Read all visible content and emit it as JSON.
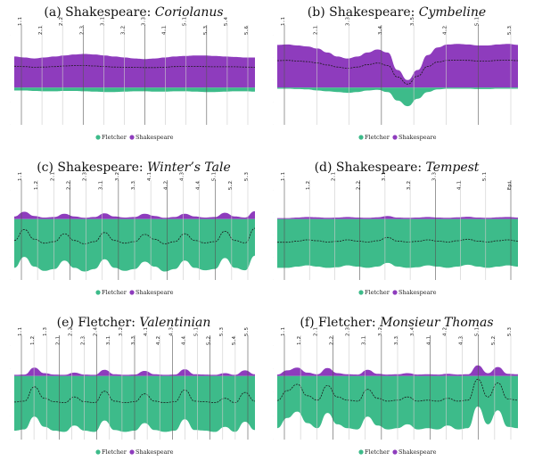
{
  "colors": {
    "fletcher": "#3dbb8a",
    "shakespeare": "#8e3cbd",
    "divider": "#555555",
    "gridline": "#cccccc"
  },
  "legend": {
    "fletcher": "Fletcher",
    "shakespeare": "Shakespeare"
  },
  "chart_data": [
    {
      "type": "area",
      "prefix": "(a) Shakespeare: ",
      "play": "Coriolanus",
      "title": "(a) Shakespeare: Coriolanus",
      "scene_labels": [
        "1.1",
        "2.1",
        "2.2",
        "2.3",
        "3.1",
        "3.2",
        "3.3",
        "4.1",
        "5.1",
        "5.3",
        "5.4",
        "5.6"
      ],
      "shakespeare_profile": [
        0.62,
        0.6,
        0.58,
        0.6,
        0.62,
        0.64,
        0.66,
        0.67,
        0.66,
        0.64,
        0.62,
        0.6,
        0.58,
        0.57,
        0.58,
        0.6,
        0.62,
        0.63,
        0.64,
        0.64,
        0.63,
        0.62,
        0.61,
        0.6,
        0.6
      ],
      "fletcher_profile": [
        0.08,
        0.08,
        0.09,
        0.1,
        0.1,
        0.09,
        0.09,
        0.1,
        0.11,
        0.12,
        0.12,
        0.11,
        0.1,
        0.1,
        0.11,
        0.11,
        0.1,
        0.1,
        0.11,
        0.12,
        0.12,
        0.11,
        0.1,
        0.1,
        0.11
      ],
      "dominant": "shakespeare"
    },
    {
      "type": "area",
      "prefix": "(b) Shakespeare: ",
      "play": "Cymbeline",
      "title": "(b) Shakespeare: Cymbeline",
      "scene_labels": [
        "1.1",
        "2.1",
        "3.3",
        "3.4",
        "3.5",
        "4.2",
        "5.1",
        "5.3"
      ],
      "shakespeare_profile": [
        0.85,
        0.86,
        0.84,
        0.82,
        0.78,
        0.7,
        0.62,
        0.58,
        0.62,
        0.7,
        0.76,
        0.7,
        0.35,
        0.15,
        0.35,
        0.65,
        0.8,
        0.86,
        0.87,
        0.86,
        0.84,
        0.84,
        0.86,
        0.87,
        0.85
      ],
      "fletcher_profile": [
        0.03,
        0.03,
        0.04,
        0.05,
        0.08,
        0.1,
        0.12,
        0.14,
        0.12,
        0.08,
        0.06,
        0.12,
        0.35,
        0.5,
        0.3,
        0.12,
        0.05,
        0.03,
        0.03,
        0.03,
        0.04,
        0.04,
        0.03,
        0.03,
        0.03
      ],
      "dominant": "shakespeare"
    },
    {
      "type": "area",
      "prefix": "(c) Shakespeare: ",
      "play": "Winter’s Tale",
      "title": "(c) Shakespeare: Winter’s Tale",
      "scene_labels": [
        "1.1",
        "1.2",
        "2.1",
        "2.2",
        "2.3",
        "3.1",
        "3.2",
        "3.3",
        "4.1",
        "4.2",
        "4.3",
        "4.4",
        "5.1",
        "5.2",
        "5.3"
      ],
      "shakespeare_profile": [
        0.1,
        0.28,
        0.12,
        0.06,
        0.08,
        0.2,
        0.1,
        0.05,
        0.08,
        0.22,
        0.1,
        0.06,
        0.08,
        0.2,
        0.12,
        0.05,
        0.08,
        0.2,
        0.1,
        0.06,
        0.08,
        0.24,
        0.1,
        0.06,
        0.3
      ],
      "fletcher_profile": [
        0.8,
        0.62,
        0.78,
        0.85,
        0.82,
        0.68,
        0.8,
        0.86,
        0.82,
        0.66,
        0.8,
        0.85,
        0.82,
        0.7,
        0.78,
        0.86,
        0.82,
        0.68,
        0.8,
        0.84,
        0.82,
        0.64,
        0.8,
        0.84,
        0.6
      ],
      "dominant": "fletcher"
    },
    {
      "type": "area",
      "prefix": "(d) Shakespeare: ",
      "play": "Tempest",
      "title": "(d) Shakespeare: Tempest",
      "scene_labels": [
        "1.1",
        "1.2",
        "2.1",
        "2.2",
        "3.1",
        "3.2",
        "3.3",
        "4.1",
        "5.1",
        "Epi"
      ],
      "shakespeare_profile": [
        0.04,
        0.04,
        0.06,
        0.08,
        0.07,
        0.05,
        0.06,
        0.08,
        0.06,
        0.05,
        0.07,
        0.12,
        0.06,
        0.05,
        0.06,
        0.08,
        0.06,
        0.05,
        0.07,
        0.09,
        0.06,
        0.05,
        0.07,
        0.08,
        0.06
      ],
      "fletcher_profile": [
        0.8,
        0.8,
        0.78,
        0.76,
        0.78,
        0.8,
        0.79,
        0.76,
        0.78,
        0.8,
        0.78,
        0.72,
        0.78,
        0.8,
        0.79,
        0.76,
        0.78,
        0.8,
        0.78,
        0.75,
        0.78,
        0.8,
        0.78,
        0.76,
        0.78
      ],
      "dominant": "fletcher"
    },
    {
      "type": "area",
      "prefix": "(e) Fletcher: ",
      "play": "Valentinian",
      "title": "(e) Fletcher: Valentinian",
      "scene_labels": [
        "1.1",
        "1.2",
        "1.3",
        "2.1",
        "2.2",
        "2.3",
        "2.4",
        "3.1",
        "3.2",
        "3.3",
        "4.1",
        "4.2",
        "4.3",
        "4.4",
        "5.1",
        "5.2",
        "5.3",
        "5.4",
        "5.5"
      ],
      "shakespeare_profile": [
        0.04,
        0.05,
        0.3,
        0.1,
        0.05,
        0.04,
        0.12,
        0.05,
        0.04,
        0.22,
        0.06,
        0.04,
        0.05,
        0.18,
        0.06,
        0.04,
        0.05,
        0.24,
        0.06,
        0.05,
        0.04,
        0.1,
        0.04,
        0.2,
        0.06
      ],
      "fletcher_profile": [
        0.86,
        0.84,
        0.64,
        0.8,
        0.86,
        0.88,
        0.78,
        0.86,
        0.88,
        0.7,
        0.85,
        0.88,
        0.86,
        0.74,
        0.85,
        0.88,
        0.86,
        0.68,
        0.85,
        0.86,
        0.88,
        0.8,
        0.88,
        0.72,
        0.85
      ],
      "dominant": "fletcher"
    },
    {
      "type": "area",
      "prefix": "(f) Fletcher: ",
      "play": "Monsieur Thomas",
      "title": "(f) Fletcher: Monsieur Thomas",
      "scene_labels": [
        "1.1",
        "1.2",
        "2.1",
        "2.2",
        "2.3",
        "3.1",
        "3.2",
        "3.3",
        "3.4",
        "4.1",
        "4.2",
        "4.3",
        "5.1",
        "5.2",
        "5.3"
      ],
      "shakespeare_profile": [
        0.05,
        0.2,
        0.3,
        0.12,
        0.06,
        0.28,
        0.1,
        0.06,
        0.05,
        0.22,
        0.08,
        0.05,
        0.06,
        0.1,
        0.05,
        0.06,
        0.05,
        0.08,
        0.05,
        0.06,
        0.38,
        0.1,
        0.32,
        0.08,
        0.06
      ],
      "fletcher_profile": [
        0.82,
        0.66,
        0.56,
        0.74,
        0.82,
        0.58,
        0.76,
        0.82,
        0.84,
        0.64,
        0.78,
        0.84,
        0.82,
        0.76,
        0.84,
        0.82,
        0.84,
        0.78,
        0.84,
        0.82,
        0.48,
        0.76,
        0.54,
        0.8,
        0.82
      ],
      "dominant": "fletcher"
    }
  ]
}
